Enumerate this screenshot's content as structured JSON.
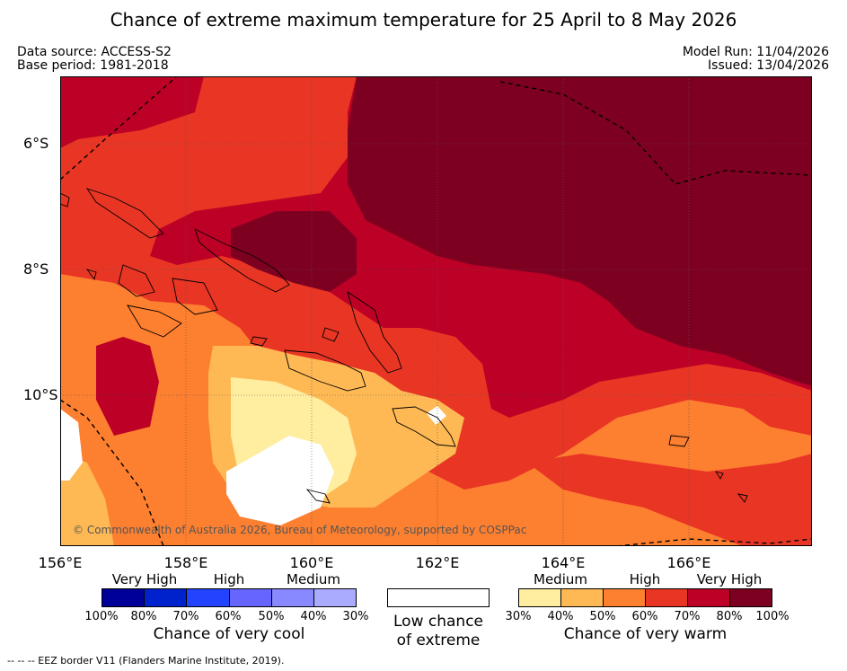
{
  "title": "Chance of extreme maximum temperature for 25 April to 8 May 2026",
  "meta": {
    "data_source": "Data source: ACCESS-S2",
    "base_period": "Base period: 1981-2018",
    "model_run": "Model Run: 11/04/2026",
    "issued": "Issued: 13/04/2026"
  },
  "map": {
    "lat_labels": [
      "6°S",
      "8°S",
      "10°S"
    ],
    "lon_labels": [
      "156°E",
      "158°E",
      "160°E",
      "162°E",
      "164°E",
      "166°E"
    ],
    "copyright": "© Commonwealth of Australia 2026, Bureau of Meteorology, supported by COSPPac",
    "colors": {
      "very_high_warm": "#7e0020",
      "high_warm2": "#bd0026",
      "high_warm": "#e93524",
      "medium_warm2": "#fd7f30",
      "medium_warm": "#feb955",
      "low_warm": "#ffeda0",
      "neutral": "#ffffff"
    }
  },
  "legend": {
    "cool": {
      "categories": [
        "Very High",
        "High",
        "Medium"
      ],
      "percents": [
        "100%",
        "80%",
        "70%",
        "60%",
        "50%",
        "40%",
        "30%"
      ],
      "colors": [
        "#000099",
        "#0022cc",
        "#2244ff",
        "#6666ff",
        "#8888ff",
        "#aaaaff"
      ],
      "caption": "Chance of very cool"
    },
    "neutral": {
      "caption_line1": "Low chance",
      "caption_line2": "of extreme"
    },
    "warm": {
      "categories": [
        "Medium",
        "High",
        "Very High"
      ],
      "percents": [
        "30%",
        "40%",
        "50%",
        "60%",
        "70%",
        "80%",
        "100%"
      ],
      "colors": [
        "#ffeda0",
        "#feb955",
        "#fd7f30",
        "#e93524",
        "#bd0026",
        "#7e0020"
      ],
      "caption": "Chance of very warm"
    }
  },
  "footnote": "--  --  -- EEZ border V11 (Flanders Marine Institute, 2019)."
}
